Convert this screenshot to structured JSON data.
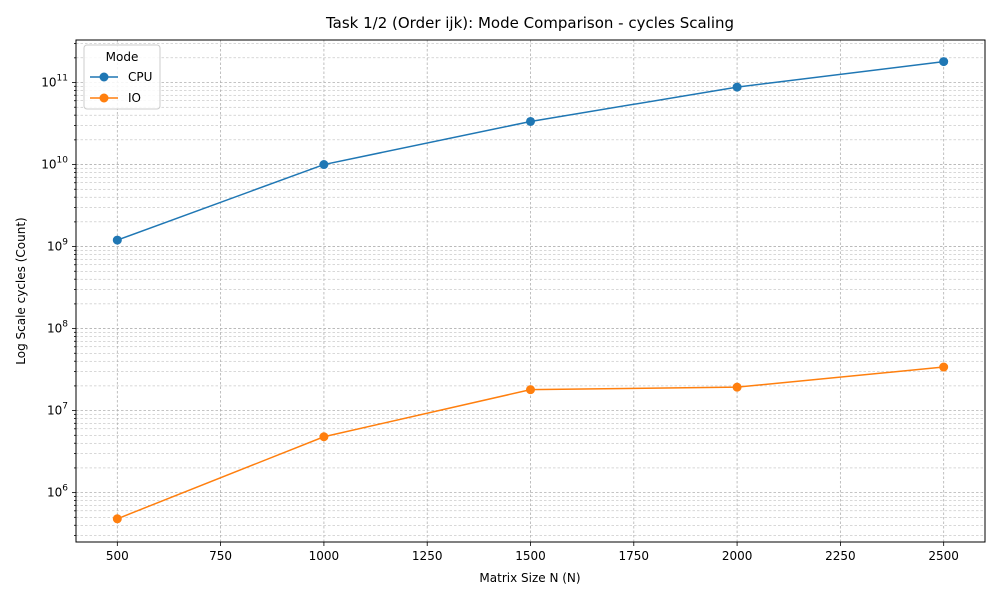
{
  "chart_data": {
    "type": "line",
    "title": "Task 1/2 (Order ijk): Mode Comparison - cycles Scaling",
    "xlabel": "Matrix Size N (N)",
    "ylabel": "Log Scale cycles (Count)",
    "x": [
      500,
      1000,
      1500,
      2000,
      2500
    ],
    "xlim": [
      400,
      2600
    ],
    "xticks": [
      500,
      750,
      1000,
      1250,
      1500,
      1750,
      2000,
      2250,
      2500
    ],
    "xtick_labels": [
      "500",
      "750",
      "1000",
      "1250",
      "1500",
      "1750",
      "2000",
      "2250",
      "2500"
    ],
    "y_scale": "log",
    "ylim": [
      250000,
      330000000000
    ],
    "ytick_exponents": [
      6,
      7,
      8,
      9,
      10,
      11
    ],
    "ytick_base": "10",
    "grid": "both, major and minor, dashed",
    "legend": {
      "title": "Mode",
      "placement": "top-left"
    },
    "series": [
      {
        "name": "CPU",
        "color": "#1f77b4",
        "marker": "circle",
        "values": [
          1200000000,
          10000000000,
          33500000000,
          88000000000,
          180000000000
        ]
      },
      {
        "name": "IO",
        "color": "#ff7f0e",
        "marker": "circle",
        "values": [
          480000,
          4800000,
          18000000,
          19300000,
          34000000
        ]
      }
    ]
  }
}
